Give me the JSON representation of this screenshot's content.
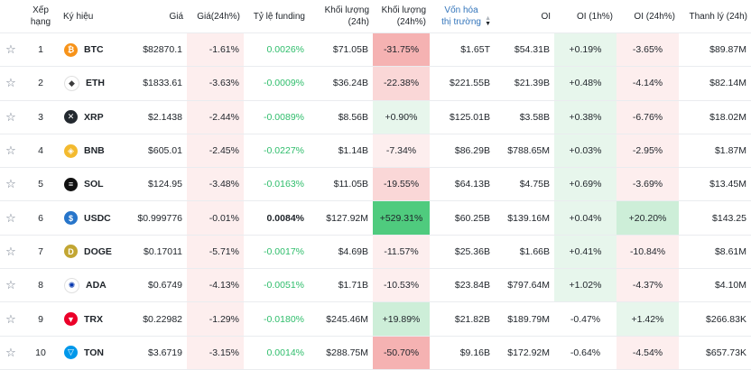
{
  "headers": {
    "rank": "Xếp hạng",
    "symbol": "Ký hiệu",
    "price": "Giá",
    "change": "Giá(24h%)",
    "funding": "Tỷ lệ funding",
    "volume": "Khối lượng (24h)",
    "volume_pct": "Khối lượng (24h%)",
    "mcap": "Vốn hóa thị trường",
    "oi": "OI",
    "oi_1h": "OI (1h%)",
    "oi_24h": "OI (24h%)",
    "liq": "Thanh lý (24h)"
  },
  "rows": [
    {
      "rank": "1",
      "symbol": "BTC",
      "price": "$82870.1",
      "change": "-1.61%",
      "funding": "0.0026%",
      "volume": "$71.05B",
      "volume_pct": "-31.75%",
      "mcap": "$1.65T",
      "oi": "$54.31B",
      "oi_1h": "+0.19%",
      "oi_24h": "-3.65%",
      "liq": "$89.87M",
      "icon": "btc-icon",
      "icon_color": "#f7931a",
      "icon_glyph": "₿"
    },
    {
      "rank": "2",
      "symbol": "ETH",
      "price": "$1833.61",
      "change": "-3.63%",
      "funding": "-0.0009%",
      "volume": "$36.24B",
      "volume_pct": "-22.38%",
      "mcap": "$221.55B",
      "oi": "$21.39B",
      "oi_1h": "+0.48%",
      "oi_24h": "-4.14%",
      "liq": "$82.14M",
      "icon": "eth-icon",
      "icon_color": "#ffffff",
      "icon_glyph": "◆"
    },
    {
      "rank": "3",
      "symbol": "XRP",
      "price": "$2.1438",
      "change": "-2.44%",
      "funding": "-0.0089%",
      "volume": "$8.56B",
      "volume_pct": "+0.90%",
      "mcap": "$125.01B",
      "oi": "$3.58B",
      "oi_1h": "+0.38%",
      "oi_24h": "-6.76%",
      "liq": "$18.02M",
      "icon": "xrp-icon",
      "icon_color": "#23292f",
      "icon_glyph": "✕"
    },
    {
      "rank": "4",
      "symbol": "BNB",
      "price": "$605.01",
      "change": "-2.45%",
      "funding": "-0.0227%",
      "volume": "$1.14B",
      "volume_pct": "-7.34%",
      "mcap": "$86.29B",
      "oi": "$788.65M",
      "oi_1h": "+0.03%",
      "oi_24h": "-2.95%",
      "liq": "$1.87M",
      "icon": "bnb-icon",
      "icon_color": "#f3ba2f",
      "icon_glyph": "◈"
    },
    {
      "rank": "5",
      "symbol": "SOL",
      "price": "$124.95",
      "change": "-3.48%",
      "funding": "-0.0163%",
      "volume": "$11.05B",
      "volume_pct": "-19.55%",
      "mcap": "$64.13B",
      "oi": "$4.75B",
      "oi_1h": "+0.69%",
      "oi_24h": "-3.69%",
      "liq": "$13.45M",
      "icon": "sol-icon",
      "icon_color": "#111111",
      "icon_glyph": "≡"
    },
    {
      "rank": "6",
      "symbol": "USDC",
      "price": "$0.999776",
      "change": "-0.01%",
      "funding": "0.0084%",
      "volume": "$127.92M",
      "volume_pct": "+529.31%",
      "mcap": "$60.25B",
      "oi": "$139.16M",
      "oi_1h": "+0.04%",
      "oi_24h": "+20.20%",
      "liq": "$143.25",
      "icon": "usdc-icon",
      "icon_color": "#2775ca",
      "icon_glyph": "$"
    },
    {
      "rank": "7",
      "symbol": "DOGE",
      "price": "$0.17011",
      "change": "-5.71%",
      "funding": "-0.0017%",
      "volume": "$4.69B",
      "volume_pct": "-11.57%",
      "mcap": "$25.36B",
      "oi": "$1.66B",
      "oi_1h": "+0.41%",
      "oi_24h": "-10.84%",
      "liq": "$8.61M",
      "icon": "doge-icon",
      "icon_color": "#c2a633",
      "icon_glyph": "D"
    },
    {
      "rank": "8",
      "symbol": "ADA",
      "price": "$0.6749",
      "change": "-4.13%",
      "funding": "-0.0051%",
      "volume": "$1.71B",
      "volume_pct": "-10.53%",
      "mcap": "$23.84B",
      "oi": "$797.64M",
      "oi_1h": "+1.02%",
      "oi_24h": "-4.37%",
      "liq": "$4.10M",
      "icon": "ada-icon",
      "icon_color": "#ffffff",
      "icon_glyph": "✺"
    },
    {
      "rank": "9",
      "symbol": "TRX",
      "price": "$0.22982",
      "change": "-1.29%",
      "funding": "-0.0180%",
      "volume": "$245.46M",
      "volume_pct": "+19.89%",
      "mcap": "$21.82B",
      "oi": "$189.79M",
      "oi_1h": "-0.47%",
      "oi_24h": "+1.42%",
      "liq": "$266.83K",
      "icon": "trx-icon",
      "icon_color": "#eb0029",
      "icon_glyph": "▼"
    },
    {
      "rank": "10",
      "symbol": "TON",
      "price": "$3.6719",
      "change": "-3.15%",
      "funding": "0.0014%",
      "volume": "$288.75M",
      "volume_pct": "-50.70%",
      "mcap": "$9.16B",
      "oi": "$172.92M",
      "oi_1h": "-0.64%",
      "oi_24h": "-4.54%",
      "liq": "$657.73K",
      "icon": "ton-icon",
      "icon_color": "#0098ea",
      "icon_glyph": "▽"
    }
  ]
}
